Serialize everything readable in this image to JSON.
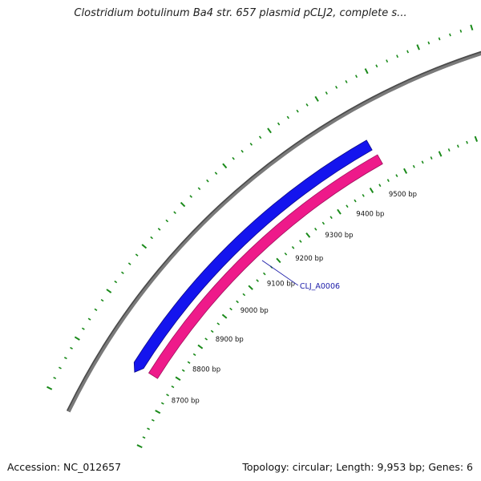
{
  "title": "Clostridium botulinum Ba4 str. 657 plasmid pCLJ2, complete s...",
  "footer": {
    "accession": "Accession: NC_012657",
    "summary": "Topology: circular; Length: 9,953 bp; Genes: 6"
  },
  "colors": {
    "backbone": "#7a7a7a",
    "forward_gene": "#1414ee",
    "reverse_gene": "#ee1a8a",
    "ticks": "#1a8a1a",
    "gene_label": "#1a1aa8"
  },
  "ruler": [
    {
      "bp": 8700,
      "label": "8700 bp"
    },
    {
      "bp": 8800,
      "label": "8800 bp"
    },
    {
      "bp": 8900,
      "label": "8900 bp"
    },
    {
      "bp": 9000,
      "label": "9000 bp"
    },
    {
      "bp": 9100,
      "label": "9100 bp"
    },
    {
      "bp": 9200,
      "label": "9200 bp"
    },
    {
      "bp": 9300,
      "label": "9300 bp"
    },
    {
      "bp": 9400,
      "label": "9400 bp"
    },
    {
      "bp": 9500,
      "label": "9500 bp"
    }
  ],
  "genes": [
    {
      "name": "",
      "strand": "forward"
    },
    {
      "name": "CLJ_A0006",
      "strand": "reverse"
    }
  ]
}
